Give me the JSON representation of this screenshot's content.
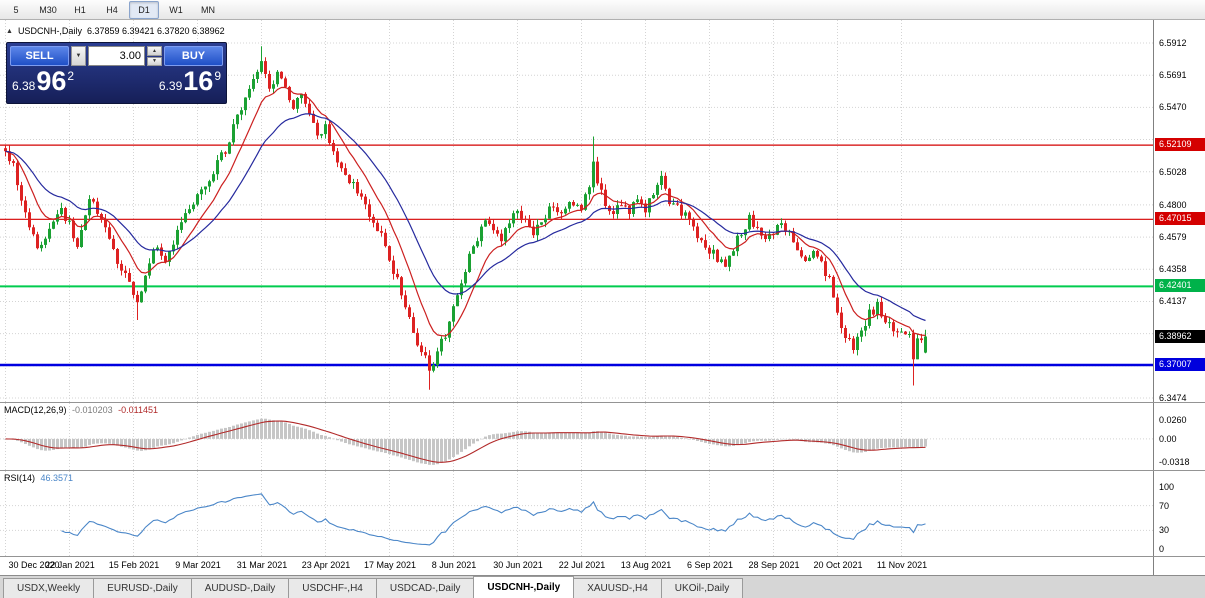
{
  "icons": {
    "collapse": "▲",
    "dropdown": "▼",
    "spin_up": "▲",
    "spin_down": "▼"
  },
  "toolbar": {
    "periods": [
      {
        "label": "5",
        "active": false
      },
      {
        "label": "M30",
        "active": false
      },
      {
        "label": "H1",
        "active": false
      },
      {
        "label": "H4",
        "active": false
      },
      {
        "label": "D1",
        "active": true
      },
      {
        "label": "W1",
        "active": false
      },
      {
        "label": "MN",
        "active": false
      }
    ]
  },
  "chart": {
    "symbol_title": "USDCNH-,Daily",
    "ohlc": "6.37859 6.39421 6.37820 6.38962"
  },
  "trade_panel": {
    "sell_label": "SELL",
    "buy_label": "BUY",
    "volume": "3.00",
    "bid": {
      "small": "6.38",
      "big": "96",
      "sup": "2"
    },
    "ask": {
      "small": "6.39",
      "big": "16",
      "sup": "9"
    }
  },
  "price_axis": {
    "labels": [
      {
        "text": "6.5912",
        "price": 6.5912
      },
      {
        "text": "6.5691",
        "price": 6.5691
      },
      {
        "text": "6.5470",
        "price": 6.547
      },
      {
        "text": "6.5028",
        "price": 6.5028
      },
      {
        "text": "6.4800",
        "price": 6.48
      },
      {
        "text": "6.4579",
        "price": 6.4579
      },
      {
        "text": "6.4358",
        "price": 6.4358
      },
      {
        "text": "6.4137",
        "price": 6.4137
      },
      {
        "text": "6.3474",
        "price": 6.3474
      }
    ],
    "tags": [
      {
        "text": "6.52109",
        "price": 6.52109,
        "color": "#d40000"
      },
      {
        "text": "6.47015",
        "price": 6.47015,
        "color": "#d40000"
      },
      {
        "text": "6.42401",
        "price": 6.42401,
        "color": "#00b24a"
      },
      {
        "text": "6.38962",
        "price": 6.38962,
        "color": "#000000"
      },
      {
        "text": "6.37007",
        "price": 6.37007,
        "color": "#0000dd"
      }
    ]
  },
  "hlines": [
    {
      "price": 6.52109,
      "color": "#d40000",
      "width": 1.2
    },
    {
      "price": 6.47015,
      "color": "#d40000",
      "width": 1.2
    },
    {
      "price": 6.42401,
      "color": "#00cc4f",
      "width": 2
    },
    {
      "price": 6.37007,
      "color": "#0000e0",
      "width": 2.5
    }
  ],
  "macd": {
    "name": "MACD(12,26,9)",
    "value1": "-0.010203",
    "value2": "-0.011451",
    "labels": [
      {
        "text": "0.0260",
        "value": 0.026
      },
      {
        "text": "0.00",
        "value": 0
      },
      {
        "text": "-0.0318",
        "value": -0.0318
      }
    ]
  },
  "rsi": {
    "name": "RSI(14)",
    "value": "46.3571",
    "labels": [
      {
        "text": "100",
        "value": 100
      },
      {
        "text": "70",
        "value": 70
      },
      {
        "text": "30",
        "value": 30
      },
      {
        "text": "0",
        "value": 0
      }
    ],
    "levels": [
      70,
      30
    ]
  },
  "time_axis": {
    "ticks": [
      {
        "bar": 0,
        "label": "30 Dec 2020"
      },
      {
        "bar": 16,
        "label": "22 Jan 2021"
      },
      {
        "bar": 32,
        "label": "15 Feb 2021"
      },
      {
        "bar": 48,
        "label": "9 Mar 2021"
      },
      {
        "bar": 64,
        "label": "31 Mar 2021"
      },
      {
        "bar": 80,
        "label": "23 Apr 2021"
      },
      {
        "bar": 96,
        "label": "17 May 2021"
      },
      {
        "bar": 112,
        "label": "8 Jun 2021"
      },
      {
        "bar": 128,
        "label": "30 Jun 2021"
      },
      {
        "bar": 144,
        "label": "22 Jul 2021"
      },
      {
        "bar": 160,
        "label": "13 Aug 2021"
      },
      {
        "bar": 176,
        "label": "6 Sep 2021"
      },
      {
        "bar": 192,
        "label": "28 Sep 2021"
      },
      {
        "bar": 208,
        "label": "20 Oct 2021"
      },
      {
        "bar": 224,
        "label": "11 Nov 2021"
      }
    ]
  },
  "tabs": [
    {
      "label": "USDX,Weekly",
      "active": false
    },
    {
      "label": "EURUSD-,Daily",
      "active": false
    },
    {
      "label": "AUDUSD-,Daily",
      "active": false
    },
    {
      "label": "USDCHF-,H4",
      "active": false
    },
    {
      "label": "USDCAD-,Daily",
      "active": false
    },
    {
      "label": "USDCNH-,Daily",
      "active": true
    },
    {
      "label": "XAUUSD-,H4",
      "active": false
    },
    {
      "label": "UKOil-,Daily",
      "active": false
    }
  ],
  "chart_data": {
    "type": "candlestick",
    "symbol": "USDCNH",
    "timeframe": "Daily",
    "bars": 231,
    "bar_spacing_px": 4,
    "price_range": {
      "top": 6.5912,
      "bottom": 6.3474
    },
    "grid_prices": [
      6.5912,
      6.5691,
      6.547,
      6.5249,
      6.5028,
      6.48,
      6.4579,
      6.4358,
      6.4137,
      6.3916,
      6.3695,
      6.3474
    ],
    "seed": 9,
    "noise": {
      "close": 0.0035,
      "wick": 0.004
    },
    "anchors": [
      [
        0,
        6.518
      ],
      [
        2,
        6.508
      ],
      [
        5,
        6.472
      ],
      [
        8,
        6.452
      ],
      [
        11,
        6.462
      ],
      [
        14,
        6.478
      ],
      [
        16,
        6.466
      ],
      [
        18,
        6.452
      ],
      [
        21,
        6.486
      ],
      [
        24,
        6.47
      ],
      [
        27,
        6.448
      ],
      [
        30,
        6.432
      ],
      [
        33,
        6.41
      ],
      [
        34,
        6.42
      ],
      [
        37,
        6.452
      ],
      [
        40,
        6.444
      ],
      [
        43,
        6.462
      ],
      [
        46,
        6.478
      ],
      [
        49,
        6.492
      ],
      [
        52,
        6.503
      ],
      [
        55,
        6.518
      ],
      [
        58,
        6.54
      ],
      [
        61,
        6.56
      ],
      [
        64,
        6.576
      ],
      [
        66,
        6.56
      ],
      [
        68,
        6.57
      ],
      [
        70,
        6.562
      ],
      [
        72,
        6.548
      ],
      [
        74,
        6.556
      ],
      [
        76,
        6.54
      ],
      [
        78,
        6.527
      ],
      [
        80,
        6.533
      ],
      [
        82,
        6.519
      ],
      [
        84,
        6.505
      ],
      [
        86,
        6.498
      ],
      [
        88,
        6.487
      ],
      [
        90,
        6.48
      ],
      [
        92,
        6.468
      ],
      [
        94,
        6.458
      ],
      [
        96,
        6.442
      ],
      [
        98,
        6.428
      ],
      [
        100,
        6.408
      ],
      [
        102,
        6.392
      ],
      [
        104,
        6.38
      ],
      [
        106,
        6.368
      ],
      [
        108,
        6.378
      ],
      [
        110,
        6.392
      ],
      [
        112,
        6.408
      ],
      [
        114,
        6.425
      ],
      [
        116,
        6.443
      ],
      [
        118,
        6.458
      ],
      [
        120,
        6.47
      ],
      [
        122,
        6.463
      ],
      [
        124,
        6.455
      ],
      [
        126,
        6.468
      ],
      [
        128,
        6.475
      ],
      [
        130,
        6.47
      ],
      [
        132,
        6.462
      ],
      [
        134,
        6.47
      ],
      [
        136,
        6.478
      ],
      [
        138,
        6.472
      ],
      [
        140,
        6.478
      ],
      [
        142,
        6.482
      ],
      [
        144,
        6.478
      ],
      [
        146,
        6.49
      ],
      [
        147,
        6.512
      ],
      [
        148,
        6.498
      ],
      [
        150,
        6.482
      ],
      [
        152,
        6.476
      ],
      [
        154,
        6.482
      ],
      [
        156,
        6.476
      ],
      [
        158,
        6.482
      ],
      [
        160,
        6.478
      ],
      [
        162,
        6.486
      ],
      [
        164,
        6.498
      ],
      [
        166,
        6.484
      ],
      [
        168,
        6.478
      ],
      [
        170,
        6.472
      ],
      [
        172,
        6.462
      ],
      [
        174,
        6.455
      ],
      [
        176,
        6.45
      ],
      [
        178,
        6.443
      ],
      [
        180,
        6.438
      ],
      [
        182,
        6.45
      ],
      [
        184,
        6.462
      ],
      [
        186,
        6.47
      ],
      [
        188,
        6.463
      ],
      [
        190,
        6.455
      ],
      [
        192,
        6.462
      ],
      [
        194,
        6.468
      ],
      [
        196,
        6.46
      ],
      [
        198,
        6.452
      ],
      [
        200,
        6.444
      ],
      [
        202,
        6.45
      ],
      [
        204,
        6.44
      ],
      [
        206,
        6.428
      ],
      [
        208,
        6.405
      ],
      [
        210,
        6.388
      ],
      [
        212,
        6.382
      ],
      [
        214,
        6.395
      ],
      [
        216,
        6.405
      ],
      [
        218,
        6.41
      ],
      [
        220,
        6.4
      ],
      [
        222,
        6.392
      ],
      [
        224,
        6.396
      ],
      [
        226,
        6.388
      ],
      [
        227,
        6.376
      ],
      [
        228,
        6.39
      ],
      [
        230,
        6.38962
      ]
    ],
    "overrides": [
      {
        "bar": 33,
        "low": 6.401
      },
      {
        "bar": 64,
        "high": 6.589
      },
      {
        "bar": 106,
        "low": 6.353
      },
      {
        "bar": 147,
        "high": 6.527
      },
      {
        "bar": 227,
        "open": 6.392,
        "close": 6.374,
        "low": 6.356
      },
      {
        "bar": 230,
        "open": 6.37859,
        "high": 6.39421,
        "low": 6.3782,
        "close": 6.38962
      }
    ],
    "ma": [
      {
        "period": 10,
        "color": "#cc2020"
      },
      {
        "period": 24,
        "color": "#262a9e"
      }
    ],
    "macd_params": {
      "fast": 12,
      "slow": 26,
      "signal": 9
    },
    "rsi_period": 14,
    "colors": {
      "up": "#1ba133",
      "down": "#dd2222",
      "macd_hist": "#c6c6c6",
      "macd_signal": "#b22a2a",
      "rsi": "#4a86c8"
    }
  }
}
